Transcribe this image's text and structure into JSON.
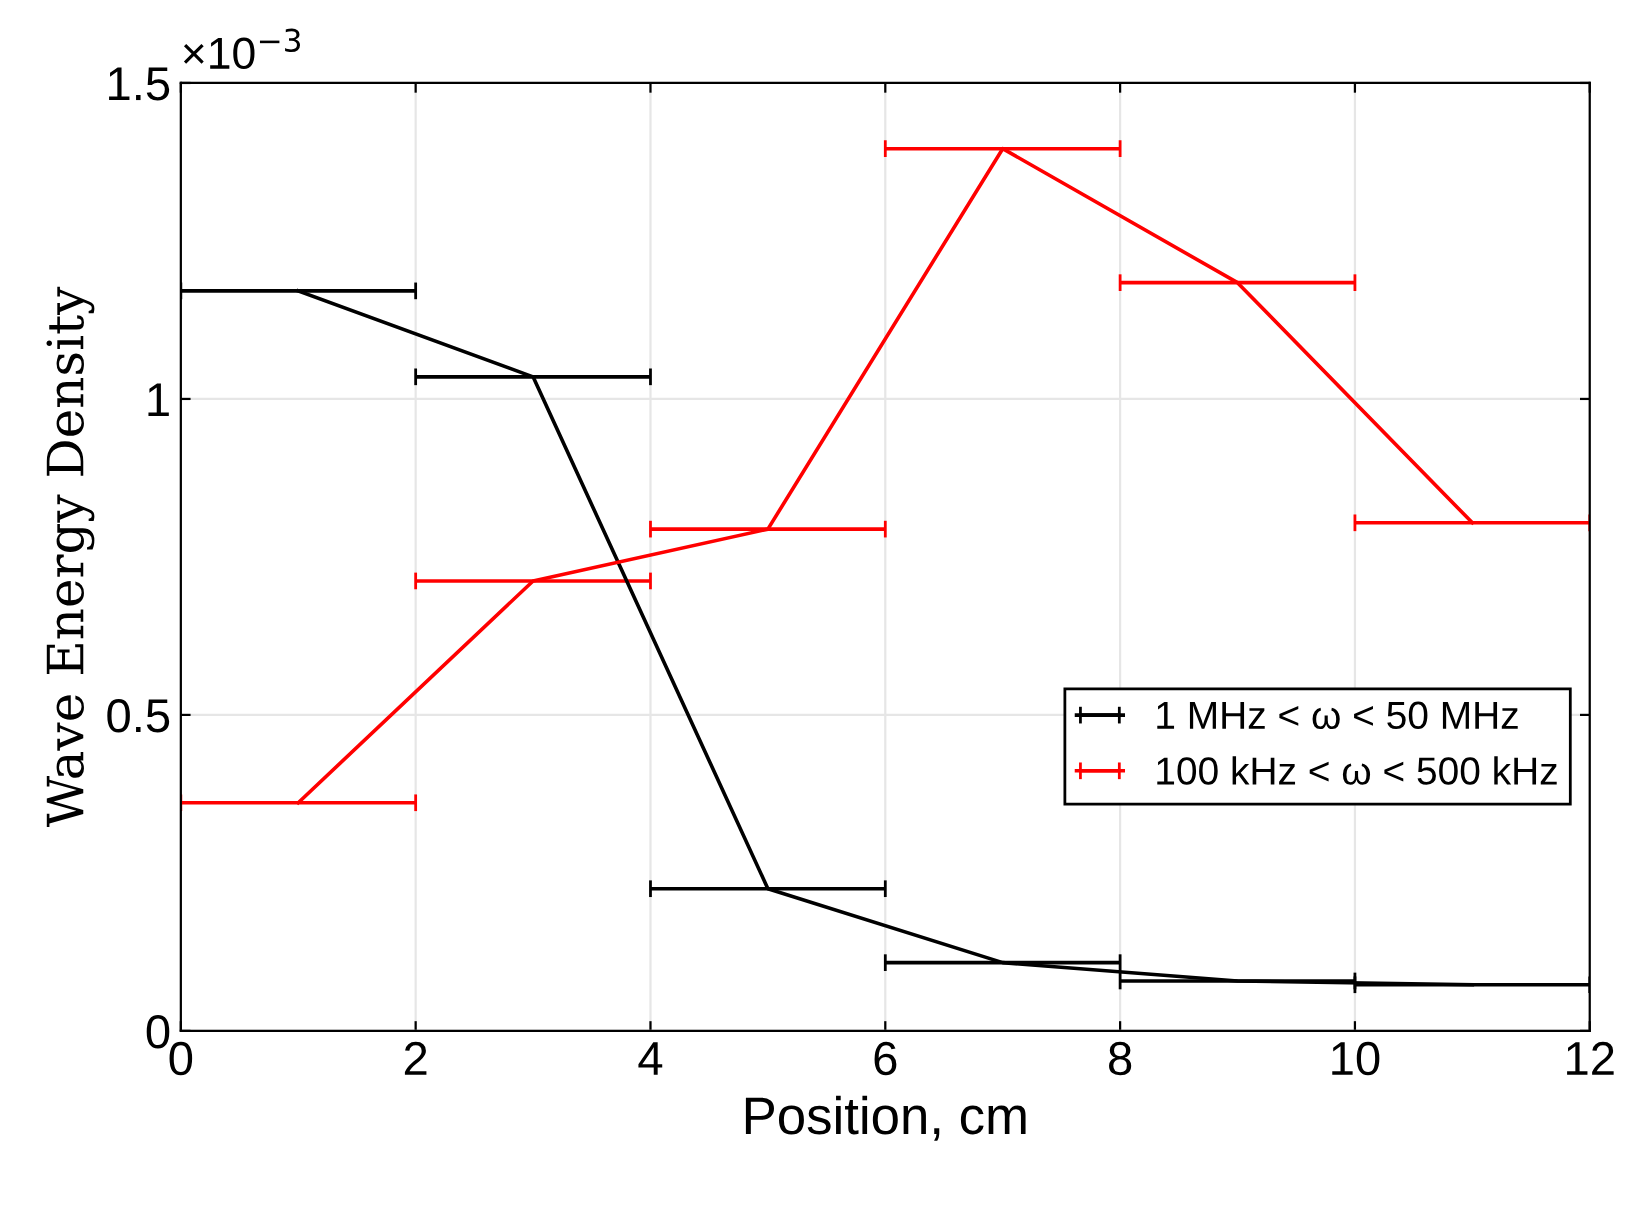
{
  "chart_data": {
    "type": "line",
    "xlabel": "Position, cm",
    "ylabel": "Wave Energy Density",
    "annotations": [
      "×10$^{−3}$"
    ],
    "xlim": [
      0,
      12
    ],
    "xticks": [
      0,
      2,
      4,
      6,
      8,
      10,
      12
    ],
    "ylim": [
      0,
      1.5
    ],
    "yticks": [
      0,
      0.5,
      1,
      1.5
    ],
    "grid": true,
    "legend": "right",
    "series": [
      {
        "name": "1 MHz < ω < 50 MHz",
        "color": "#000000",
        "x": [
          1,
          3,
          5,
          7,
          9,
          11
        ],
        "values": [
          1.171,
          1.035,
          0.225,
          0.108,
          0.079,
          0.073
        ],
        "xerrors": [
          1,
          1,
          1,
          1,
          1,
          1
        ]
      },
      {
        "name": "100 kHz < ω < 500 kHz",
        "color": "#ff0000",
        "x": [
          1,
          3,
          5,
          7,
          9,
          11
        ],
        "values": [
          0.361,
          0.712,
          0.794,
          1.396,
          1.184,
          0.804
        ],
        "xerrors": [
          1,
          1,
          1,
          1,
          1,
          1
        ]
      }
    ]
  }
}
